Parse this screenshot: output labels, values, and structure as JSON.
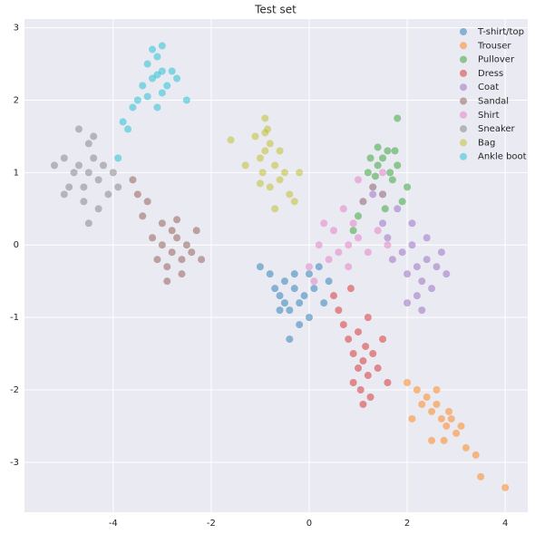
{
  "chart_data": {
    "type": "scatter",
    "title": "Test set",
    "xlim": [
      -5.81,
      4.46
    ],
    "ylim": [
      -3.69,
      3.12
    ],
    "xticks": [
      -4,
      -2,
      0,
      2,
      4
    ],
    "yticks": [
      -3,
      -2,
      -1,
      0,
      1,
      2,
      3
    ],
    "grid": true,
    "legend": "upper right",
    "series": [
      {
        "name": "T-shirt/top",
        "color": "#1f77b4",
        "x": [
          -0.6,
          -0.5,
          -0.3,
          -0.2,
          -0.4,
          -0.7,
          0.0,
          0.2,
          -0.1,
          -0.3,
          -0.5,
          0.1,
          0.4,
          -0.8,
          -0.6,
          0.3,
          -0.2,
          0.0,
          -1.0,
          -0.4
        ],
        "y": [
          -0.7,
          -0.5,
          -0.6,
          -0.8,
          -0.9,
          -0.6,
          -0.4,
          -0.3,
          -0.7,
          -0.4,
          -0.8,
          -0.6,
          -0.5,
          -0.4,
          -0.9,
          -0.8,
          -1.1,
          -1.0,
          -0.3,
          -1.3
        ]
      },
      {
        "name": "Trouser",
        "color": "#ff7f0e",
        "x": [
          2.0,
          2.2,
          2.4,
          2.5,
          2.6,
          2.7,
          2.8,
          2.9,
          3.0,
          3.1,
          2.75,
          2.85,
          2.6,
          2.3,
          2.1,
          3.2,
          3.4,
          3.5,
          4.0,
          2.5
        ],
        "y": [
          -1.9,
          -2.0,
          -2.1,
          -2.3,
          -2.2,
          -2.4,
          -2.5,
          -2.4,
          -2.6,
          -2.5,
          -2.7,
          -2.3,
          -2.0,
          -2.2,
          -2.4,
          -2.8,
          -2.9,
          -3.2,
          -3.35,
          -2.7
        ]
      },
      {
        "name": "Pullover",
        "color": "#2ca02c",
        "x": [
          1.2,
          1.4,
          1.5,
          1.6,
          1.3,
          1.7,
          1.8,
          1.1,
          1.0,
          1.5,
          1.9,
          1.4,
          1.25,
          1.65,
          2.0,
          0.9,
          1.55,
          1.75,
          1.8,
          1.35
        ],
        "y": [
          1.0,
          1.1,
          1.2,
          1.3,
          0.8,
          0.9,
          1.1,
          0.6,
          0.4,
          0.7,
          0.6,
          1.35,
          1.2,
          1.0,
          0.8,
          0.2,
          0.5,
          1.3,
          1.75,
          0.95
        ]
      },
      {
        "name": "Dress",
        "color": "#d62728",
        "x": [
          1.0,
          1.1,
          1.2,
          0.9,
          1.3,
          1.05,
          1.15,
          0.8,
          1.4,
          0.7,
          0.6,
          1.0,
          1.25,
          0.5,
          0.9,
          1.2,
          1.5,
          0.85,
          1.1,
          1.6
        ],
        "y": [
          -1.7,
          -1.6,
          -1.8,
          -1.9,
          -1.5,
          -2.0,
          -1.4,
          -1.3,
          -1.7,
          -1.1,
          -0.9,
          -1.2,
          -2.1,
          -0.7,
          -1.5,
          -1.0,
          -1.3,
          -0.6,
          -2.2,
          -1.9
        ]
      },
      {
        "name": "Coat",
        "color": "#9467bd",
        "x": [
          2.2,
          2.4,
          2.0,
          2.6,
          2.3,
          1.9,
          2.5,
          2.1,
          1.7,
          1.5,
          2.8,
          2.2,
          1.8,
          1.6,
          2.4,
          2.0,
          2.7,
          1.3,
          2.1,
          2.3
        ],
        "y": [
          -0.3,
          -0.2,
          -0.4,
          -0.3,
          -0.5,
          -0.1,
          -0.6,
          0.0,
          -0.2,
          0.3,
          -0.4,
          -0.7,
          0.5,
          0.1,
          0.1,
          -0.8,
          -0.1,
          0.7,
          0.3,
          -0.9
        ]
      },
      {
        "name": "Sandal",
        "color": "#8c564b",
        "x": [
          -2.8,
          -2.6,
          -3.0,
          -2.7,
          -2.9,
          -2.5,
          -3.1,
          -2.4,
          -2.8,
          -3.2,
          -2.6,
          -3.0,
          -3.4,
          -3.5,
          -3.3,
          -2.2,
          -2.9,
          -2.7,
          -3.6,
          -2.3
        ],
        "y": [
          -0.1,
          -0.2,
          0.0,
          0.1,
          -0.3,
          0.0,
          -0.2,
          -0.1,
          0.2,
          0.1,
          -0.4,
          0.3,
          0.4,
          0.7,
          0.6,
          -0.2,
          -0.5,
          0.35,
          0.9,
          0.2
        ]
      },
      {
        "name": "Shirt",
        "color": "#e377c2",
        "x": [
          0.8,
          0.6,
          1.0,
          0.4,
          0.2,
          1.2,
          0.9,
          0.5,
          0.0,
          1.4,
          1.6,
          0.7,
          1.1,
          0.3,
          1.3,
          1.5,
          0.1,
          0.8,
          1.0,
          1.5
        ],
        "y": [
          0.0,
          -0.1,
          0.1,
          -0.2,
          0.0,
          -0.1,
          0.3,
          0.2,
          -0.3,
          0.2,
          0.0,
          0.5,
          0.6,
          0.3,
          0.8,
          1.0,
          -0.5,
          -0.3,
          0.9,
          0.7
        ]
      },
      {
        "name": "Sneaker",
        "color": "#7f7f7f",
        "x": [
          -4.5,
          -4.7,
          -4.3,
          -4.6,
          -4.4,
          -4.8,
          -4.2,
          -4.5,
          -5.0,
          -4.9,
          -4.1,
          -4.6,
          -4.4,
          -4.0,
          -5.2,
          -4.3,
          -4.7,
          -3.9,
          -4.5,
          -5.0
        ],
        "y": [
          1.0,
          1.1,
          0.9,
          0.8,
          1.2,
          1.0,
          1.1,
          1.4,
          1.2,
          0.8,
          0.7,
          0.6,
          1.5,
          1.0,
          1.1,
          0.5,
          1.6,
          0.8,
          0.3,
          0.7
        ]
      },
      {
        "name": "Bag",
        "color": "#bcbd22",
        "x": [
          -0.9,
          -0.8,
          -1.0,
          -0.85,
          -0.95,
          -0.7,
          -1.1,
          -0.9,
          -0.6,
          -0.8,
          -1.0,
          -0.5,
          -0.4,
          -1.3,
          -0.7,
          -0.3,
          -0.2,
          -1.6,
          -0.6,
          -0.9
        ],
        "y": [
          1.3,
          1.4,
          1.2,
          1.6,
          1.0,
          1.1,
          1.5,
          1.75,
          0.9,
          0.8,
          0.85,
          1.0,
          0.7,
          1.1,
          0.5,
          0.6,
          1.0,
          1.45,
          1.3,
          1.55
        ]
      },
      {
        "name": "Ankle boot",
        "color": "#17becf",
        "x": [
          -3.1,
          -3.0,
          -3.2,
          -3.3,
          -2.9,
          -3.1,
          -3.0,
          -3.4,
          -2.8,
          -3.2,
          -3.5,
          -3.6,
          -3.8,
          -2.7,
          -3.0,
          -3.3,
          -2.5,
          -3.7,
          -3.9,
          -3.1
        ],
        "y": [
          2.35,
          2.4,
          2.3,
          2.5,
          2.2,
          2.6,
          2.1,
          2.2,
          2.4,
          2.7,
          2.0,
          1.9,
          1.7,
          2.3,
          2.75,
          2.05,
          2.0,
          1.6,
          1.2,
          1.9
        ]
      }
    ]
  }
}
